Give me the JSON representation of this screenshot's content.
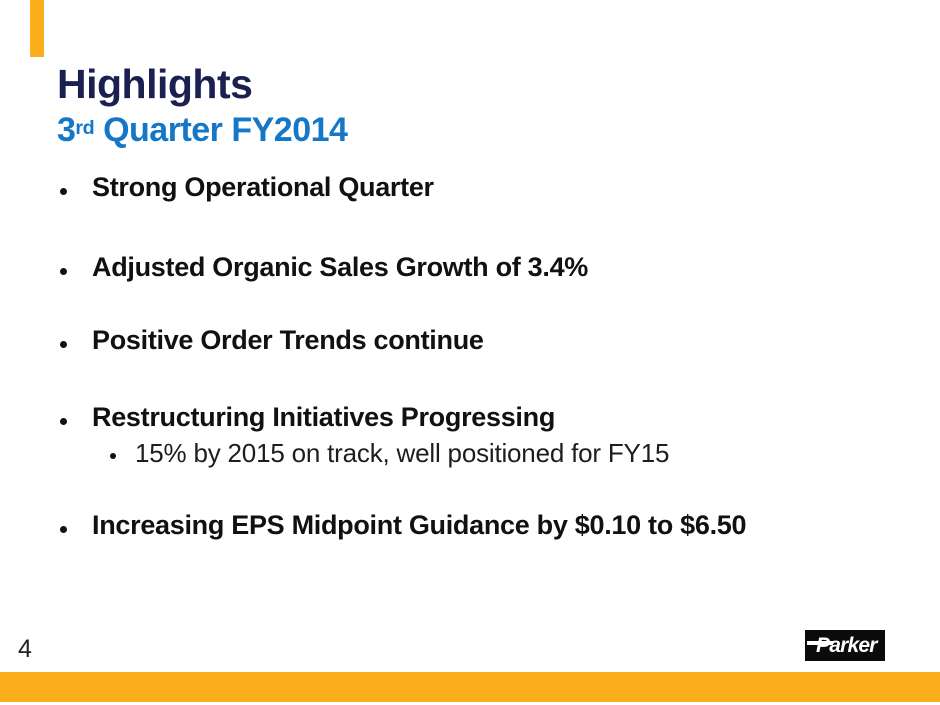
{
  "slide": {
    "title": "Highlights",
    "subtitle": {
      "base": "3",
      "superscript": "rd",
      "rest": " Quarter FY2014"
    },
    "bullets": [
      {
        "level": 1,
        "text": "Strong Operational Quarter"
      },
      {
        "level": 1,
        "text": "Adjusted Organic Sales Growth of 3.4%"
      },
      {
        "level": 1,
        "text": "Positive Order Trends continue"
      },
      {
        "level": 1,
        "text": "Restructuring Initiatives Progressing"
      },
      {
        "level": 2,
        "text": "15% by 2015 on track, well positioned for FY15"
      },
      {
        "level": 1,
        "text": "Increasing EPS Midpoint Guidance by $0.10 to $6.50"
      }
    ],
    "page_number": "4",
    "logo": {
      "text": "Parker"
    },
    "colors": {
      "title_navy": "#1A2151",
      "subtitle_blue": "#1577C8",
      "body_black": "#111111",
      "accent_gold": "#FBAE1C",
      "logo_black": "#0B0B0B"
    }
  }
}
